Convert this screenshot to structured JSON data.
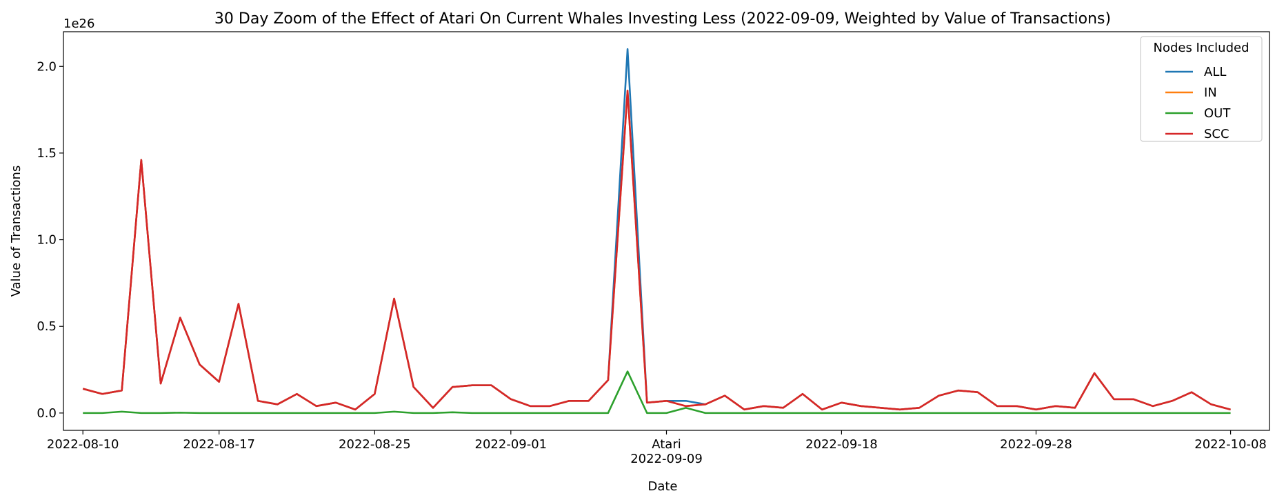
{
  "chart_data": {
    "type": "line",
    "title": "30 Day Zoom of the Effect of Atari On Current Whales Investing Less (2022-09-09, Weighted by Value of Transactions)",
    "xlabel": "Date",
    "ylabel": "Value of Transactions",
    "y_offset_label": "1e26",
    "x_range": [
      "2022-08-09",
      "2022-10-10"
    ],
    "ylim": [
      -0.1,
      2.2
    ],
    "y_ticks": [
      0.0,
      0.5,
      1.0,
      1.5,
      2.0
    ],
    "y_tick_labels": [
      "0.0",
      "0.5",
      "1.0",
      "1.5",
      "2.0"
    ],
    "x_ticks": [
      {
        "date": "2022-08-10",
        "label": "2022-08-10"
      },
      {
        "date": "2022-08-17",
        "label": "2022-08-17"
      },
      {
        "date": "2022-08-25",
        "label": "2022-08-25"
      },
      {
        "date": "2022-09-01",
        "label": "2022-09-01"
      },
      {
        "date": "2022-09-09",
        "label": "2022-09-09"
      },
      {
        "date": "2022-09-18",
        "label": "2022-09-18"
      },
      {
        "date": "2022-09-28",
        "label": "2022-09-28"
      },
      {
        "date": "2022-10-08",
        "label": "2022-10-08"
      }
    ],
    "event_marker": {
      "date": "2022-09-09",
      "label": "Atari"
    },
    "legend": {
      "title": "Nodes Included",
      "placement": "top-right"
    },
    "grid": false,
    "x": [
      "2022-08-10",
      "2022-08-11",
      "2022-08-12",
      "2022-08-13",
      "2022-08-14",
      "2022-08-15",
      "2022-08-16",
      "2022-08-17",
      "2022-08-18",
      "2022-08-19",
      "2022-08-20",
      "2022-08-21",
      "2022-08-22",
      "2022-08-23",
      "2022-08-24",
      "2022-08-25",
      "2022-08-26",
      "2022-08-27",
      "2022-08-28",
      "2022-08-29",
      "2022-08-30",
      "2022-08-31",
      "2022-09-01",
      "2022-09-02",
      "2022-09-03",
      "2022-09-04",
      "2022-09-05",
      "2022-09-06",
      "2022-09-07",
      "2022-09-08",
      "2022-09-09",
      "2022-09-10",
      "2022-09-11",
      "2022-09-12",
      "2022-09-13",
      "2022-09-14",
      "2022-09-15",
      "2022-09-16",
      "2022-09-17",
      "2022-09-18",
      "2022-09-19",
      "2022-09-20",
      "2022-09-21",
      "2022-09-22",
      "2022-09-23",
      "2022-09-24",
      "2022-09-25",
      "2022-09-26",
      "2022-09-27",
      "2022-09-28",
      "2022-09-29",
      "2022-09-30",
      "2022-10-01",
      "2022-10-02",
      "2022-10-03",
      "2022-10-04",
      "2022-10-05",
      "2022-10-06",
      "2022-10-07",
      "2022-10-08"
    ],
    "series": [
      {
        "name": "ALL",
        "color": "#1f77b4",
        "values": [
          0.14,
          0.11,
          0.13,
          1.46,
          0.17,
          0.55,
          0.28,
          0.18,
          0.63,
          0.07,
          0.05,
          0.11,
          0.04,
          0.06,
          0.02,
          0.11,
          0.66,
          0.15,
          0.03,
          0.15,
          0.16,
          0.16,
          0.08,
          0.04,
          0.04,
          0.07,
          0.07,
          0.19,
          2.1,
          0.06,
          0.07,
          0.07,
          0.05,
          0.1,
          0.02,
          0.04,
          0.03,
          0.11,
          0.02,
          0.06,
          0.04,
          0.03,
          0.02,
          0.03,
          0.1,
          0.13,
          0.12,
          0.04,
          0.04,
          0.02,
          0.04,
          0.03,
          0.23,
          0.08,
          0.08,
          0.04,
          0.07,
          0.12,
          0.05,
          0.02
        ]
      },
      {
        "name": "IN",
        "color": "#ff7f0e",
        "values": [
          0.14,
          0.11,
          0.13,
          1.46,
          0.17,
          0.55,
          0.28,
          0.18,
          0.63,
          0.07,
          0.05,
          0.11,
          0.04,
          0.06,
          0.02,
          0.11,
          0.66,
          0.15,
          0.03,
          0.15,
          0.16,
          0.16,
          0.08,
          0.04,
          0.04,
          0.07,
          0.07,
          0.19,
          1.86,
          0.06,
          0.07,
          0.04,
          0.05,
          0.1,
          0.02,
          0.04,
          0.03,
          0.11,
          0.02,
          0.06,
          0.04,
          0.03,
          0.02,
          0.03,
          0.1,
          0.13,
          0.12,
          0.04,
          0.04,
          0.02,
          0.04,
          0.03,
          0.23,
          0.08,
          0.08,
          0.04,
          0.07,
          0.12,
          0.05,
          0.02
        ]
      },
      {
        "name": "OUT",
        "color": "#2ca02c",
        "values": [
          0.0,
          0.0,
          0.008,
          0.0,
          0.0,
          0.002,
          0.0,
          0.0,
          0.0,
          0.0,
          0.0,
          0.0,
          0.0,
          0.0,
          0.0,
          0.0,
          0.008,
          0.0,
          0.0,
          0.004,
          0.0,
          0.0,
          0.0,
          0.0,
          0.0,
          0.0,
          0.0,
          0.0,
          0.24,
          0.0,
          0.0,
          0.03,
          0.0,
          0.0,
          0.0,
          0.0,
          0.0,
          0.0,
          0.0,
          0.0,
          0.0,
          0.0,
          0.0,
          0.0,
          0.0,
          0.0,
          0.0,
          0.0,
          0.0,
          0.0,
          0.0,
          0.0,
          0.0,
          0.0,
          0.0,
          0.0,
          0.0,
          0.0,
          0.0,
          0.0
        ]
      },
      {
        "name": "SCC",
        "color": "#d62728",
        "values": [
          0.14,
          0.11,
          0.13,
          1.46,
          0.17,
          0.55,
          0.28,
          0.18,
          0.63,
          0.07,
          0.05,
          0.11,
          0.04,
          0.06,
          0.02,
          0.11,
          0.66,
          0.15,
          0.03,
          0.15,
          0.16,
          0.16,
          0.08,
          0.04,
          0.04,
          0.07,
          0.07,
          0.19,
          1.86,
          0.06,
          0.07,
          0.04,
          0.05,
          0.1,
          0.02,
          0.04,
          0.03,
          0.11,
          0.02,
          0.06,
          0.04,
          0.03,
          0.02,
          0.03,
          0.1,
          0.13,
          0.12,
          0.04,
          0.04,
          0.02,
          0.04,
          0.03,
          0.23,
          0.08,
          0.08,
          0.04,
          0.07,
          0.12,
          0.05,
          0.02
        ]
      }
    ]
  }
}
